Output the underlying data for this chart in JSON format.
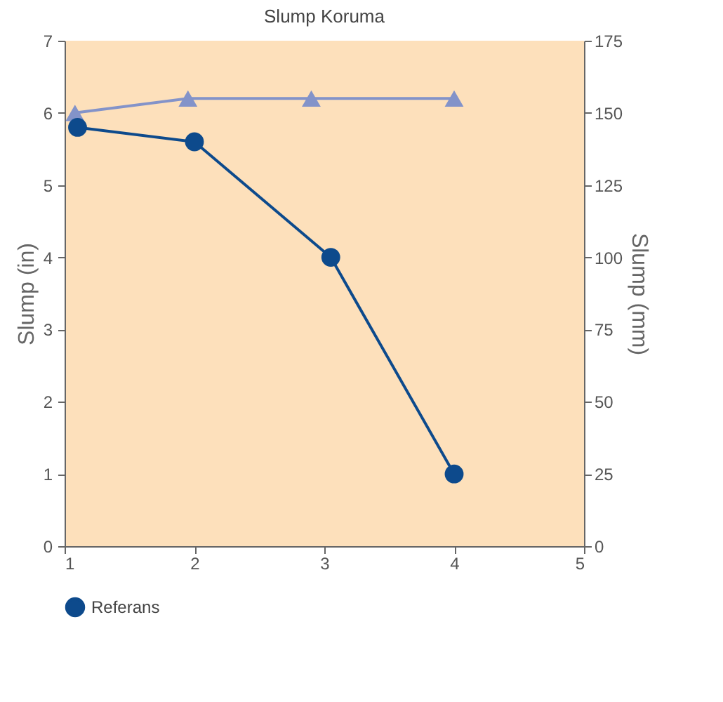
{
  "chart_data": {
    "type": "line",
    "title": "Slump Koruma",
    "xlabel": null,
    "ylabel": "Slump (in)",
    "y2label": "Slump (mm)",
    "xlim": [
      1,
      5
    ],
    "xticks": [
      1,
      2,
      3,
      4,
      5
    ],
    "ylim": [
      0,
      7
    ],
    "yticks": [
      0,
      1,
      2,
      3,
      4,
      5,
      6,
      7
    ],
    "y2lim": [
      0,
      175
    ],
    "y2ticks": [
      0,
      25,
      50,
      75,
      100,
      125,
      150,
      175
    ],
    "series": [
      {
        "color": "#8393c9",
        "marker": "triangle",
        "x": [
          1.08,
          1.95,
          2.9,
          4.0
        ],
        "values": [
          6.0,
          6.2,
          6.2,
          6.2
        ]
      },
      {
        "name": "Referans",
        "color": "#0d4a8c",
        "marker": "circle",
        "x": [
          1.1,
          2.0,
          3.05,
          4.0
        ],
        "values": [
          5.8,
          5.6,
          4.0,
          1.0
        ]
      }
    ],
    "legend": "bottom"
  }
}
